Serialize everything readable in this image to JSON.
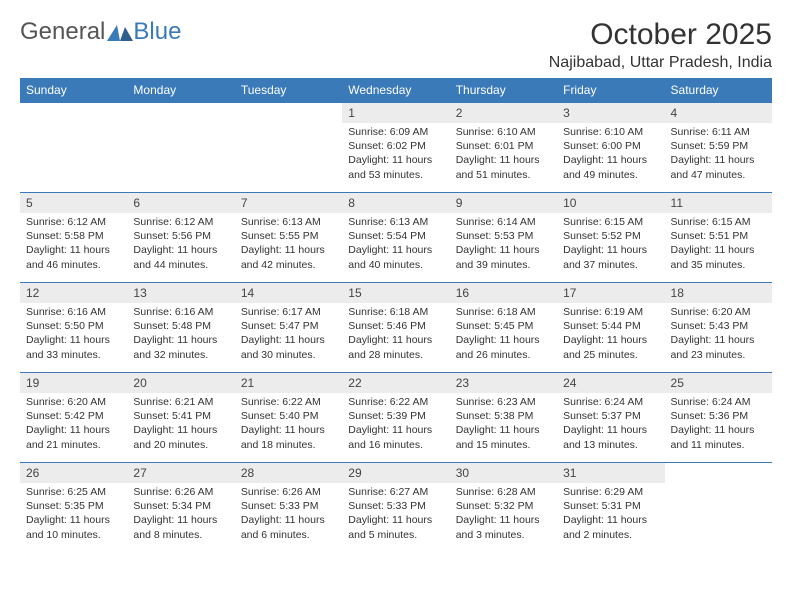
{
  "logo": {
    "text_a": "General",
    "text_b": "Blue",
    "mark_color": "#3a7ab8"
  },
  "header": {
    "title": "October 2025",
    "location": "Najibabad, Uttar Pradesh, India"
  },
  "colors": {
    "header_bg": "#3a7ab8",
    "header_fg": "#ffffff",
    "date_bg": "#ececec",
    "row_border": "#3a7ab8",
    "text_color": "#333333"
  },
  "daynames": [
    "Sunday",
    "Monday",
    "Tuesday",
    "Wednesday",
    "Thursday",
    "Friday",
    "Saturday"
  ],
  "weeks": [
    [
      null,
      null,
      null,
      {
        "d": "1",
        "r": "6:09 AM",
        "s": "6:02 PM",
        "dl": "11 hours and 53 minutes."
      },
      {
        "d": "2",
        "r": "6:10 AM",
        "s": "6:01 PM",
        "dl": "11 hours and 51 minutes."
      },
      {
        "d": "3",
        "r": "6:10 AM",
        "s": "6:00 PM",
        "dl": "11 hours and 49 minutes."
      },
      {
        "d": "4",
        "r": "6:11 AM",
        "s": "5:59 PM",
        "dl": "11 hours and 47 minutes."
      }
    ],
    [
      {
        "d": "5",
        "r": "6:12 AM",
        "s": "5:58 PM",
        "dl": "11 hours and 46 minutes."
      },
      {
        "d": "6",
        "r": "6:12 AM",
        "s": "5:56 PM",
        "dl": "11 hours and 44 minutes."
      },
      {
        "d": "7",
        "r": "6:13 AM",
        "s": "5:55 PM",
        "dl": "11 hours and 42 minutes."
      },
      {
        "d": "8",
        "r": "6:13 AM",
        "s": "5:54 PM",
        "dl": "11 hours and 40 minutes."
      },
      {
        "d": "9",
        "r": "6:14 AM",
        "s": "5:53 PM",
        "dl": "11 hours and 39 minutes."
      },
      {
        "d": "10",
        "r": "6:15 AM",
        "s": "5:52 PM",
        "dl": "11 hours and 37 minutes."
      },
      {
        "d": "11",
        "r": "6:15 AM",
        "s": "5:51 PM",
        "dl": "11 hours and 35 minutes."
      }
    ],
    [
      {
        "d": "12",
        "r": "6:16 AM",
        "s": "5:50 PM",
        "dl": "11 hours and 33 minutes."
      },
      {
        "d": "13",
        "r": "6:16 AM",
        "s": "5:48 PM",
        "dl": "11 hours and 32 minutes."
      },
      {
        "d": "14",
        "r": "6:17 AM",
        "s": "5:47 PM",
        "dl": "11 hours and 30 minutes."
      },
      {
        "d": "15",
        "r": "6:18 AM",
        "s": "5:46 PM",
        "dl": "11 hours and 28 minutes."
      },
      {
        "d": "16",
        "r": "6:18 AM",
        "s": "5:45 PM",
        "dl": "11 hours and 26 minutes."
      },
      {
        "d": "17",
        "r": "6:19 AM",
        "s": "5:44 PM",
        "dl": "11 hours and 25 minutes."
      },
      {
        "d": "18",
        "r": "6:20 AM",
        "s": "5:43 PM",
        "dl": "11 hours and 23 minutes."
      }
    ],
    [
      {
        "d": "19",
        "r": "6:20 AM",
        "s": "5:42 PM",
        "dl": "11 hours and 21 minutes."
      },
      {
        "d": "20",
        "r": "6:21 AM",
        "s": "5:41 PM",
        "dl": "11 hours and 20 minutes."
      },
      {
        "d": "21",
        "r": "6:22 AM",
        "s": "5:40 PM",
        "dl": "11 hours and 18 minutes."
      },
      {
        "d": "22",
        "r": "6:22 AM",
        "s": "5:39 PM",
        "dl": "11 hours and 16 minutes."
      },
      {
        "d": "23",
        "r": "6:23 AM",
        "s": "5:38 PM",
        "dl": "11 hours and 15 minutes."
      },
      {
        "d": "24",
        "r": "6:24 AM",
        "s": "5:37 PM",
        "dl": "11 hours and 13 minutes."
      },
      {
        "d": "25",
        "r": "6:24 AM",
        "s": "5:36 PM",
        "dl": "11 hours and 11 minutes."
      }
    ],
    [
      {
        "d": "26",
        "r": "6:25 AM",
        "s": "5:35 PM",
        "dl": "11 hours and 10 minutes."
      },
      {
        "d": "27",
        "r": "6:26 AM",
        "s": "5:34 PM",
        "dl": "11 hours and 8 minutes."
      },
      {
        "d": "28",
        "r": "6:26 AM",
        "s": "5:33 PM",
        "dl": "11 hours and 6 minutes."
      },
      {
        "d": "29",
        "r": "6:27 AM",
        "s": "5:33 PM",
        "dl": "11 hours and 5 minutes."
      },
      {
        "d": "30",
        "r": "6:28 AM",
        "s": "5:32 PM",
        "dl": "11 hours and 3 minutes."
      },
      {
        "d": "31",
        "r": "6:29 AM",
        "s": "5:31 PM",
        "dl": "11 hours and 2 minutes."
      },
      null
    ]
  ],
  "labels": {
    "sunrise": "Sunrise:",
    "sunset": "Sunset:",
    "daylight": "Daylight:"
  }
}
